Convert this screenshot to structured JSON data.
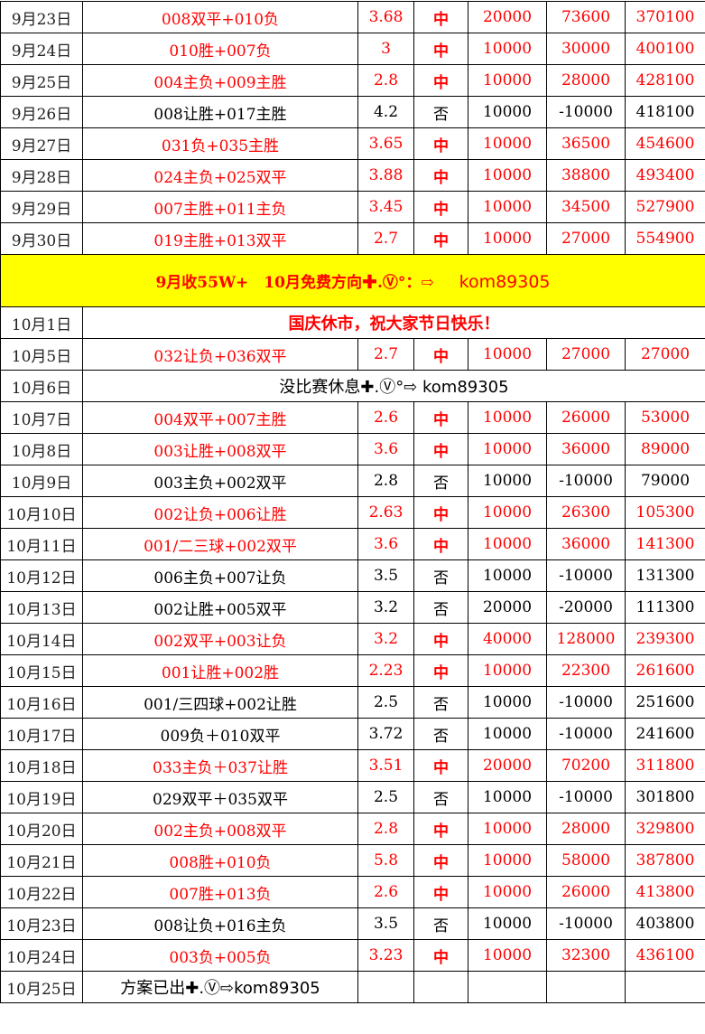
{
  "colors": {
    "win": "#ff0000",
    "banner_bg": "#ffff00",
    "text": "#000000"
  },
  "rows_sep": [
    {
      "date": "9月23日",
      "bet": "008双平+010负",
      "odds": "3.68",
      "result": "中",
      "stake": "20000",
      "profit": "73600",
      "total": "370100",
      "win": true
    },
    {
      "date": "9月24日",
      "bet": "010胜+007负",
      "odds": "3",
      "result": "中",
      "stake": "10000",
      "profit": "30000",
      "total": "400100",
      "win": true
    },
    {
      "date": "9月25日",
      "bet": "004主负+009主胜",
      "odds": "2.8",
      "result": "中",
      "stake": "10000",
      "profit": "28000",
      "total": "428100",
      "win": true
    },
    {
      "date": "9月26日",
      "bet": "008让胜+017主胜",
      "odds": "4.2",
      "result": "否",
      "stake": "10000",
      "profit": "-10000",
      "total": "418100",
      "win": false
    },
    {
      "date": "9月27日",
      "bet": "031负+035主胜",
      "odds": "3.65",
      "result": "中",
      "stake": "10000",
      "profit": "36500",
      "total": "454600",
      "win": true
    },
    {
      "date": "9月28日",
      "bet": "024主负+025双平",
      "odds": "3.88",
      "result": "中",
      "stake": "10000",
      "profit": "38800",
      "total": "493400",
      "win": true
    },
    {
      "date": "9月29日",
      "bet": "007主胜+011主负",
      "odds": "3.45",
      "result": "中",
      "stake": "10000",
      "profit": "34500",
      "total": "527900",
      "win": true
    },
    {
      "date": "9月30日",
      "bet": "019主胜+013双平",
      "odds": "2.7",
      "result": "中",
      "stake": "10000",
      "profit": "27000",
      "total": "554900",
      "win": true
    }
  ],
  "banner": {
    "text": "9月收55W+　10月免费方向✚.Ⓥ°：⇨",
    "handle": "kom89305"
  },
  "holiday": {
    "date": "10月1日",
    "text": "国庆休市，祝大家节日快乐！"
  },
  "row_oct5": {
    "date": "10月5日",
    "bet": "032让负+036双平",
    "odds": "2.7",
    "result": "中",
    "stake": "10000",
    "profit": "27000",
    "total": "27000",
    "win": true
  },
  "rest_day": {
    "date": "10月6日",
    "text": "没比赛休息✚.Ⓥ°⇨ kom89305"
  },
  "rows_oct": [
    {
      "date": "10月7日",
      "bet": "004双平+007主胜",
      "odds": "2.6",
      "result": "中",
      "stake": "10000",
      "profit": "26000",
      "total": "53000",
      "win": true
    },
    {
      "date": "10月8日",
      "bet": "003让胜+008双平",
      "odds": "3.6",
      "result": "中",
      "stake": "10000",
      "profit": "36000",
      "total": "89000",
      "win": true
    },
    {
      "date": "10月9日",
      "bet": "003主负+002双平",
      "odds": "2.8",
      "result": "否",
      "stake": "10000",
      "profit": "-10000",
      "total": "79000",
      "win": false
    },
    {
      "date": "10月10日",
      "bet": "002让负+006让胜",
      "odds": "2.63",
      "result": "中",
      "stake": "10000",
      "profit": "26300",
      "total": "105300",
      "win": true
    },
    {
      "date": "10月11日",
      "bet": "001/二三球+002双平",
      "odds": "3.6",
      "result": "中",
      "stake": "10000",
      "profit": "36000",
      "total": "141300",
      "win": true
    },
    {
      "date": "10月12日",
      "bet": "006主负+007让负",
      "odds": "3.5",
      "result": "否",
      "stake": "10000",
      "profit": "-10000",
      "total": "131300",
      "win": false
    },
    {
      "date": "10月13日",
      "bet": "002让胜+005双平",
      "odds": "3.2",
      "result": "否",
      "stake": "20000",
      "profit": "-20000",
      "total": "111300",
      "win": false
    },
    {
      "date": "10月14日",
      "bet": "002双平+003让负",
      "odds": "3.2",
      "result": "中",
      "stake": "40000",
      "profit": "128000",
      "total": "239300",
      "win": true
    },
    {
      "date": "10月15日",
      "bet": "001让胜+002胜",
      "odds": "2.23",
      "result": "中",
      "stake": "10000",
      "profit": "22300",
      "total": "261600",
      "win": true
    },
    {
      "date": "10月16日",
      "bet": "001/三四球+002让胜",
      "odds": "2.5",
      "result": "否",
      "stake": "10000",
      "profit": "-10000",
      "total": "251600",
      "win": false
    },
    {
      "date": "10月17日",
      "bet": "009负＋010双平",
      "odds": "3.72",
      "result": "否",
      "stake": "10000",
      "profit": "-10000",
      "total": "241600",
      "win": false
    },
    {
      "date": "10月18日",
      "bet": "033主负＋037让胜",
      "odds": "3.51",
      "result": "中",
      "stake": "20000",
      "profit": "70200",
      "total": "311800",
      "win": true
    },
    {
      "date": "10月19日",
      "bet": "029双平＋035双平",
      "odds": "2.5",
      "result": "否",
      "stake": "10000",
      "profit": "-10000",
      "total": "301800",
      "win": false
    },
    {
      "date": "10月20日",
      "bet": "002主负+008双平",
      "odds": "2.8",
      "result": "中",
      "stake": "10000",
      "profit": "28000",
      "total": "329800",
      "win": true
    },
    {
      "date": "10月21日",
      "bet": "008胜+010负",
      "odds": "5.8",
      "result": "中",
      "stake": "10000",
      "profit": "58000",
      "total": "387800",
      "win": true
    },
    {
      "date": "10月22日",
      "bet": "007胜+013负",
      "odds": "2.6",
      "result": "中",
      "stake": "10000",
      "profit": "26000",
      "total": "413800",
      "win": true
    },
    {
      "date": "10月23日",
      "bet": "008让负+016主负",
      "odds": "3.5",
      "result": "否",
      "stake": "10000",
      "profit": "-10000",
      "total": "403800",
      "win": false
    },
    {
      "date": "10月24日",
      "bet": "003负+005负",
      "odds": "3.23",
      "result": "中",
      "stake": "10000",
      "profit": "32300",
      "total": "436100",
      "win": true
    }
  ],
  "last": {
    "date": "10月25日",
    "text": "方案已出✚.Ⓥ⇨kom89305"
  }
}
